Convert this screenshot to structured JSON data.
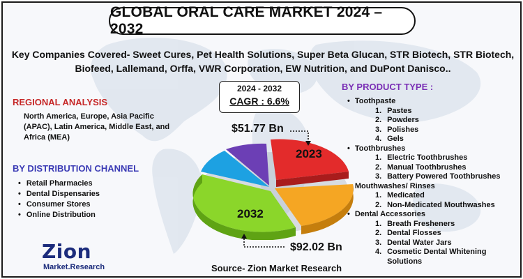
{
  "title": "GLOBAL ORAL CARE MARKET 2024 – 2032",
  "companies": "Key Companies Covered- Sweet Cures, Pet Health Solutions, Super Beta Glucan, STR Biotech, STR Biotech, Biofeed, Lallemand, Orffa, VWR Corporation, EW Nutrition, and DuPont Danisco..",
  "regional": {
    "title": "REGIONAL ANALYSIS",
    "text": "North America, Europe, Asia Pacific (APAC), Latin America, Middle East, and Africa (MEA)"
  },
  "distribution": {
    "title": "BY DISTRIBUTION CHANNEL",
    "items": [
      "Retail Pharmacies",
      "Dental Dispensaries",
      "Consumer Stores",
      "Online Distribution"
    ]
  },
  "product": {
    "title": "BY PRODUCT TYPE :",
    "categories": [
      {
        "name": "Toothpaste",
        "items": [
          "Pastes",
          "Powders",
          "Polishes",
          "Gels"
        ]
      },
      {
        "name": "Toothbrushes",
        "items": [
          "Electric Toothbrushes",
          "Manual Toothbrushes",
          "Battery Powered Toothbrushes"
        ]
      },
      {
        "name": "Mouthwashes/ Rinses",
        "items": [
          "Medicated",
          "Non-Medicated Mouthwashes"
        ]
      },
      {
        "name": "Dental Accessories",
        "items": [
          "Breath Fresheners",
          "Dental Flosses",
          "Dental Water Jars",
          "Cosmetic Dental Whitening Solutions"
        ]
      }
    ]
  },
  "forecast": {
    "years": "2024 - 2032",
    "cagr": "CAGR : 6.6%",
    "value_2023": "$51.77 Bn",
    "label_2023": "2023",
    "value_2032": "$92.02 Bn",
    "label_2032": "2032"
  },
  "pie_colors": [
    "#e32b2b",
    "#f5a623",
    "#8bd62a",
    "#1da1e2",
    "#6c3fb5"
  ],
  "source": "Source- Zion Market Research",
  "logo": {
    "main": "Zion",
    "sub": "Market.Research"
  }
}
